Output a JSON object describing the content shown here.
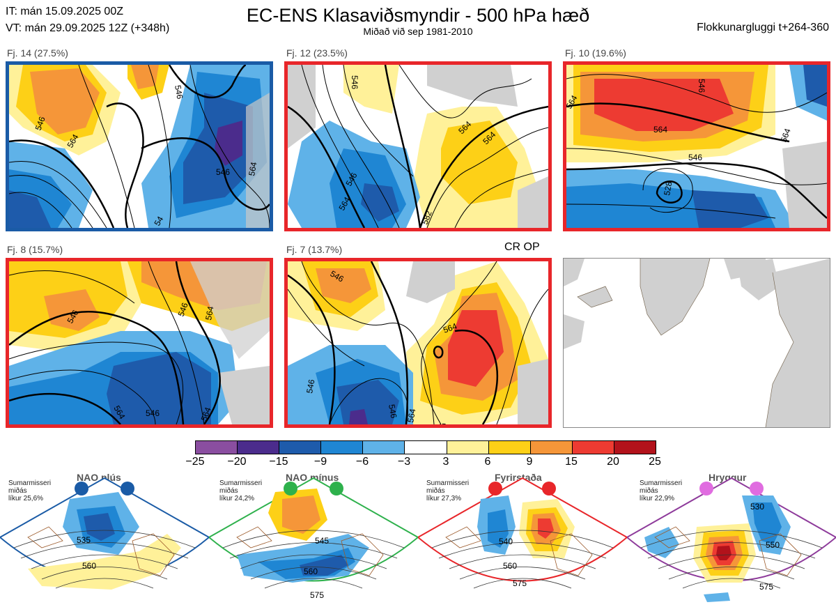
{
  "header": {
    "it": "IT: mán 15.09.2025 00Z",
    "vt": "VT: mán 29.09.2025 12Z  (+348h)",
    "title": "EC-ENS Klasaviðsmyndir - 500 hPa hæð",
    "subtitle": "Miðað við sep 1981-2010",
    "window": "Flokkunargluggi t+264-360"
  },
  "panels": [
    {
      "label": "Fj. 14 (27.5%)",
      "border": "#1a5ba6",
      "iso": [
        "546",
        "564",
        "546",
        "564",
        "546",
        "54"
      ]
    },
    {
      "label": "Fj. 12 (23.5%)",
      "border": "#e8262a",
      "iso": [
        "546",
        "564",
        "564",
        "564",
        "546",
        "582"
      ]
    },
    {
      "label": "Fj. 10 (19.6%)",
      "border": "#e8262a",
      "iso": [
        "564",
        "546",
        "564",
        "546",
        "528",
        "564"
      ]
    },
    {
      "label": "Fj. 8 (15.7%)",
      "border": "#e8262a",
      "iso": [
        "546",
        "546",
        "564",
        "546",
        "564",
        "564"
      ]
    },
    {
      "label": "Fj. 7 (13.7%)",
      "border": "#e8262a",
      "iso": [
        "546",
        "564",
        "546",
        "564",
        "546",
        "582"
      ]
    }
  ],
  "cr_op": "CR OP",
  "colorbar": {
    "ticks": [
      "−25",
      "−20",
      "−15",
      "−9",
      "−6",
      "−3",
      "3",
      "6",
      "9",
      "15",
      "20",
      "25"
    ],
    "colors": [
      "#8a4ea0",
      "#4b2c8c",
      "#1e5bab",
      "#1f86d3",
      "#5fb2e8",
      "#ffffff",
      "#fff199",
      "#fdd017",
      "#f59639",
      "#ed3b32",
      "#b2121b"
    ]
  },
  "regimes": [
    {
      "title": "NAO plús",
      "note": "Sumarmisseri\nmiðás\nlíkur 25,6%",
      "color": "#1a5ba6",
      "iso": [
        "535",
        "560"
      ]
    },
    {
      "title": "NAO mínus",
      "note": "Sumarmisseri\nmiðás\nlíkur 24,2%",
      "color": "#2eb14c",
      "iso": [
        "545",
        "560",
        "575"
      ]
    },
    {
      "title": "Fyrirstaða",
      "note": "Sumarmisseri\nmiðás\nlíkur 27,3%",
      "color": "#e8262a",
      "iso": [
        "540",
        "560",
        "575"
      ]
    },
    {
      "title": "Hryggur",
      "note": "Sumarmisseri\nmiðás\nlíkur 22,9%",
      "color": "#e06ce0",
      "iso": [
        "530",
        "550",
        "575"
      ]
    }
  ]
}
